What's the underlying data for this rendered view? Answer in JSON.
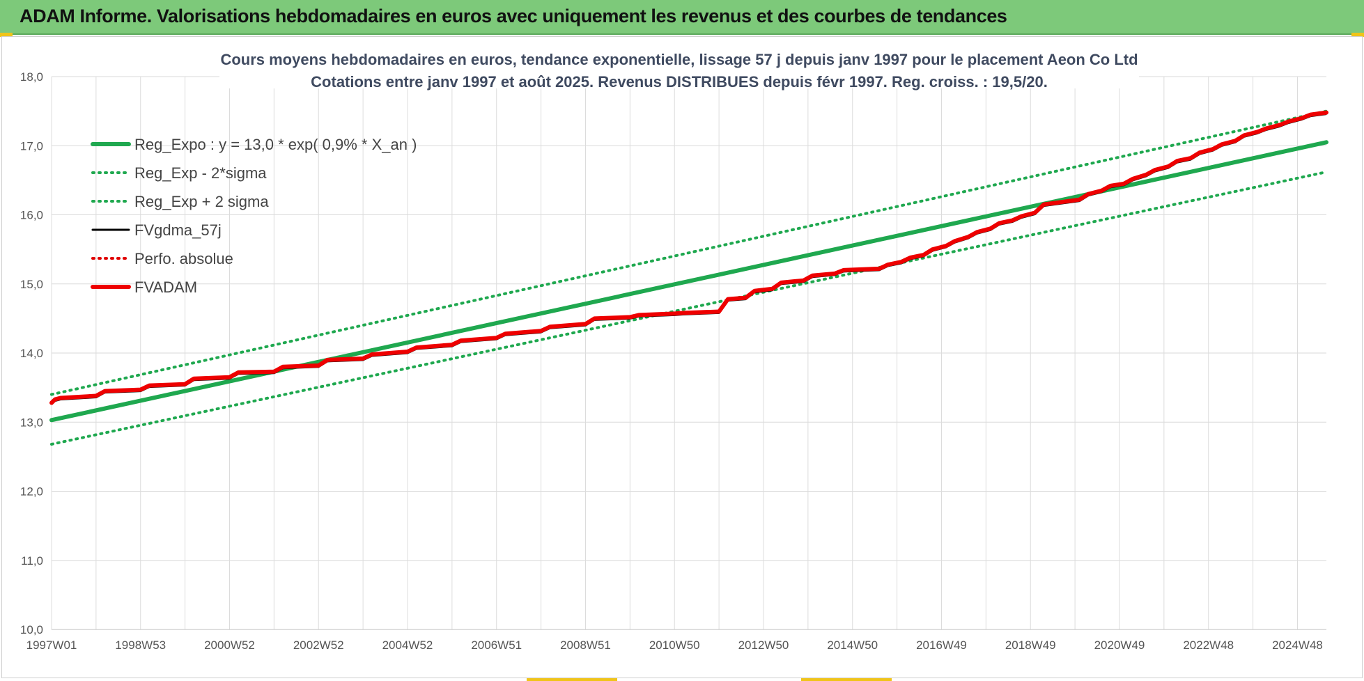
{
  "header": {
    "title": "ADAM Informe. Valorisations hebdomadaires en euros avec uniquement les revenus et des courbes de tendances"
  },
  "chart_data": {
    "type": "line",
    "title": "Cours moyens hebdomadaires en euros, tendance exponentielle, lissage 57 j depuis janv 1997 pour le placement Aeon Co Ltd",
    "subtitle": "Cotations entre janv 1997 et août 2025.  Revenus DISTRIBUES depuis févr 1997.  Reg. croiss. : 19,5/20.",
    "xlabel": "",
    "ylabel": "",
    "ylim": [
      10.0,
      18.0
    ],
    "yticks": [
      "10,0",
      "11,0",
      "12,0",
      "13,0",
      "14,0",
      "15,0",
      "16,0",
      "17,0",
      "18,0"
    ],
    "xticks": [
      "1997W01",
      "1998W53",
      "2000W52",
      "2002W52",
      "2004W52",
      "2006W51",
      "2008W51",
      "2010W50",
      "2012W50",
      "2014W50",
      "2016W49",
      "2018W49",
      "2020W49",
      "2022W48",
      "2024W48"
    ],
    "xrange_years": [
      1997.0,
      2025.65
    ],
    "grid": true,
    "legend_position": "top-left",
    "series": [
      {
        "name": "Reg_Expo : y = 13,0 * exp( 0,9% *  X_an )",
        "color": "#1fa84f",
        "style": "solid-thick",
        "x": [
          1997.0,
          2025.65
        ],
        "values": [
          13.03,
          17.05
        ]
      },
      {
        "name": "Reg_Exp - 2*sigma",
        "color": "#1fa84f",
        "style": "dotted",
        "x": [
          1997.0,
          2025.65
        ],
        "values": [
          12.68,
          16.62
        ]
      },
      {
        "name": "Reg_Exp + 2 sigma",
        "color": "#1fa84f",
        "style": "dotted",
        "x": [
          1997.0,
          2025.65
        ],
        "values": [
          13.4,
          17.5
        ]
      },
      {
        "name": "FVgdma_57j",
        "color": "#000000",
        "style": "solid"
      },
      {
        "name": "Perfo. absolue",
        "color": "#e00000",
        "style": "dotted"
      },
      {
        "name": "FVADAM",
        "color": "#ee0000",
        "style": "solid-thick",
        "x": [
          1997.0,
          1997.08,
          1997.2,
          1998.0,
          1998.2,
          1999.0,
          1999.2,
          2000.0,
          2000.2,
          2001.0,
          2001.2,
          2002.0,
          2002.2,
          2003.0,
          2003.2,
          2004.0,
          2004.2,
          2005.0,
          2005.2,
          2006.0,
          2006.2,
          2007.0,
          2007.2,
          2008.0,
          2008.2,
          2009.0,
          2009.2,
          2010.0,
          2010.2,
          2011.0,
          2011.2,
          2012.0,
          2012.2,
          2012.6,
          2012.8,
          2013.2,
          2013.4,
          2013.9,
          2014.1,
          2014.6,
          2014.8,
          2015.6,
          2015.8,
          2016.1,
          2016.3,
          2016.6,
          2016.8,
          2017.1,
          2017.3,
          2017.6,
          2017.8,
          2018.1,
          2018.3,
          2018.6,
          2018.8,
          2019.1,
          2019.3,
          2020.1,
          2020.3,
          2020.6,
          2020.8,
          2021.1,
          2021.3,
          2021.6,
          2021.8,
          2022.1,
          2022.3,
          2022.6,
          2022.8,
          2023.1,
          2023.3,
          2023.6,
          2023.8,
          2024.1,
          2024.3,
          2024.6,
          2024.8,
          2025.1,
          2025.3,
          2025.65
        ],
        "values": [
          13.28,
          13.33,
          13.35,
          13.38,
          13.45,
          13.47,
          13.53,
          13.55,
          13.63,
          13.65,
          13.72,
          13.73,
          13.8,
          13.82,
          13.9,
          13.92,
          13.98,
          14.02,
          14.08,
          14.12,
          14.18,
          14.22,
          14.28,
          14.32,
          14.38,
          14.42,
          14.5,
          14.52,
          14.55,
          14.57,
          14.58,
          14.6,
          14.78,
          14.8,
          14.9,
          14.93,
          15.02,
          15.05,
          15.12,
          15.15,
          15.2,
          15.22,
          15.28,
          15.32,
          15.38,
          15.42,
          15.5,
          15.55,
          15.62,
          15.68,
          15.75,
          15.8,
          15.88,
          15.92,
          15.98,
          16.03,
          16.15,
          16.22,
          16.3,
          16.35,
          16.42,
          16.45,
          16.52,
          16.58,
          16.65,
          16.7,
          16.78,
          16.82,
          16.9,
          16.95,
          17.02,
          17.07,
          17.15,
          17.2,
          17.25,
          17.3,
          17.35,
          17.4,
          17.45,
          17.48
        ]
      }
    ]
  }
}
